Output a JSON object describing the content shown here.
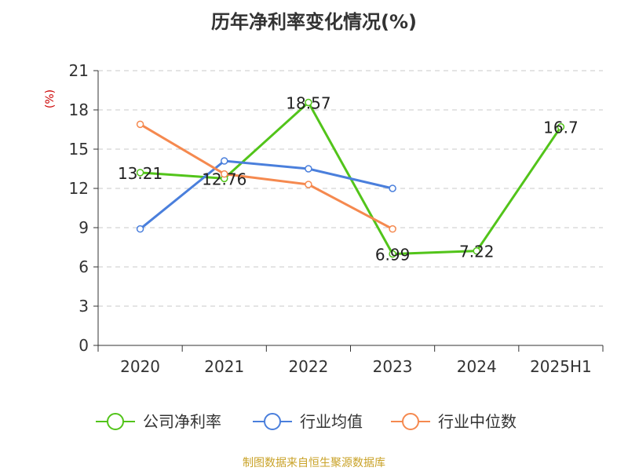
{
  "title": "历年净利率变化情况(%)",
  "source": "制图数据来自恒生聚源数据库",
  "chart_data": {
    "type": "line",
    "title": "历年净利率变化情况(%)",
    "ylabel": "(%)",
    "categories": [
      "2020",
      "2021",
      "2022",
      "2023",
      "2024",
      "2025H1"
    ],
    "ylim": [
      0,
      21
    ],
    "yticks": [
      0,
      3,
      6,
      9,
      12,
      15,
      18,
      21
    ],
    "grid": true,
    "legend_position": "bottom",
    "series": [
      {
        "name": "公司净利率",
        "color": "#52c41a",
        "values": [
          13.21,
          12.76,
          18.57,
          6.99,
          7.22,
          16.7
        ],
        "labels": [
          "13.21",
          "12.76",
          "18.57",
          "6.99",
          "7.22",
          "16.7"
        ]
      },
      {
        "name": "行业均值",
        "color": "#4a7fdc",
        "values": [
          8.9,
          14.1,
          13.5,
          12.0,
          null,
          null
        ]
      },
      {
        "name": "行业中位数",
        "color": "#f5894f",
        "values": [
          16.9,
          13.1,
          12.3,
          8.9,
          null,
          null
        ]
      }
    ]
  }
}
